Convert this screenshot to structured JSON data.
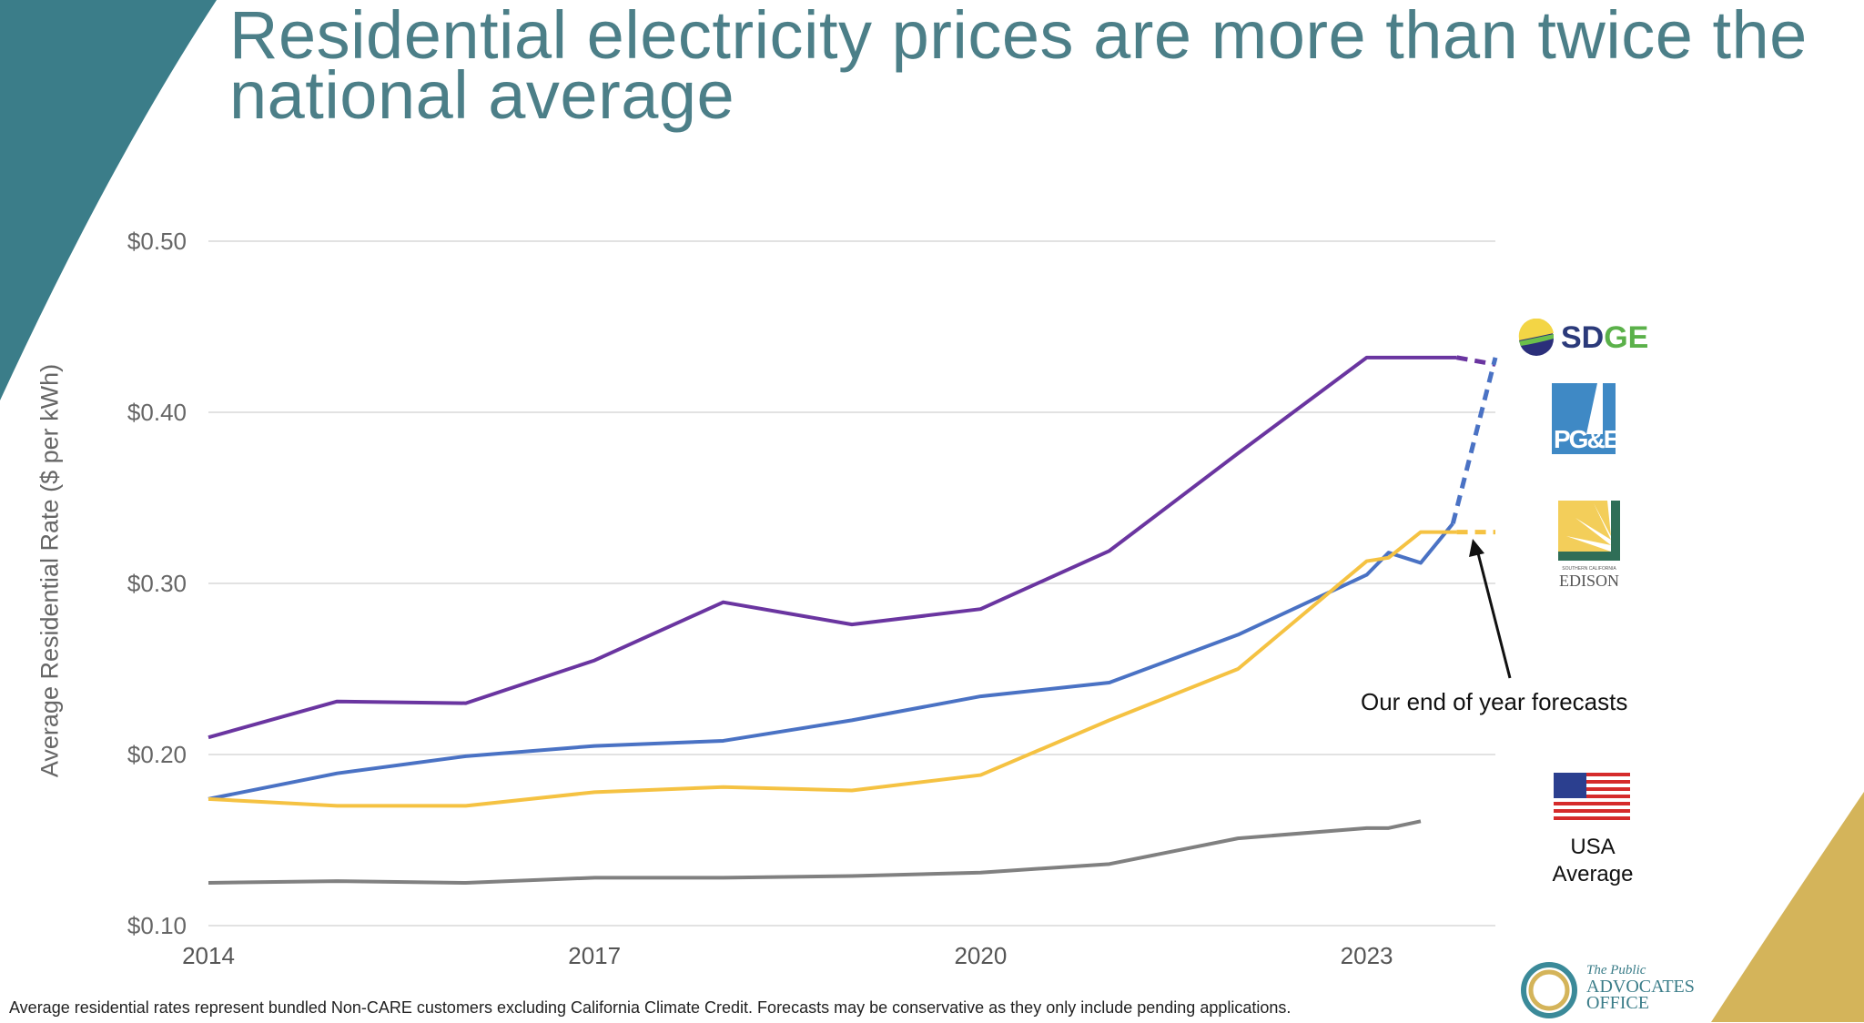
{
  "title": "Residential electricity prices are more than twice the national average",
  "footnote": "Average residential rates represent bundled Non-CARE customers excluding California Climate Credit. Forecasts may be conservative as they only include pending applications.",
  "annotation": "Our end of year forecasts",
  "logos": {
    "sdge": "SDGE",
    "pge": "PG&E",
    "sce_small": "SOUTHERN CALIFORNIA",
    "sce": "EDISON",
    "usa_line1": "USA",
    "usa_line2": "Average",
    "pao_line1": "The Public",
    "pao_line2": "ADVOCATES",
    "pao_line3": "OFFICE"
  },
  "colors": {
    "title": "#4c7f88",
    "sdge": "#6a35a0",
    "pge": "#4a72c4",
    "sce": "#f5c242",
    "usa": "#808080",
    "grid": "#d9d9d9"
  },
  "chart_data": {
    "type": "line",
    "ylabel": "Average Residential Rate ($ per kWh)",
    "xlabel": "",
    "xlim": [
      2014,
      2024
    ],
    "ylim": [
      0.1,
      0.5
    ],
    "xticks": [
      2014,
      2017,
      2020,
      2023
    ],
    "xtick_labels": [
      "2014",
      "2017",
      "2020",
      "2023"
    ],
    "yticks": [
      0.1,
      0.2,
      0.3,
      0.4,
      0.5
    ],
    "ytick_labels": [
      "$0.10",
      "$0.20",
      "$0.30",
      "$0.40",
      "$0.50"
    ],
    "grid": true,
    "legend": "logos at right",
    "series": [
      {
        "key": "sdge",
        "color": "#6a35a0",
        "x": [
          2014,
          2015,
          2016,
          2017,
          2018,
          2019,
          2020,
          2021,
          2022,
          2023,
          2023.7
        ],
        "y": [
          0.21,
          0.231,
          0.23,
          0.255,
          0.289,
          0.276,
          0.285,
          0.319,
          0.376,
          0.432,
          0.432
        ],
        "forecast_x": [
          2023.7,
          2024
        ],
        "forecast_y": [
          0.432,
          0.428
        ]
      },
      {
        "key": "pge",
        "color": "#4a72c4",
        "x": [
          2014,
          2015,
          2016,
          2017,
          2018,
          2019,
          2020,
          2021,
          2022,
          2023,
          2023.17,
          2023.42,
          2023.67
        ],
        "y": [
          0.174,
          0.189,
          0.199,
          0.205,
          0.208,
          0.22,
          0.234,
          0.242,
          0.27,
          0.305,
          0.318,
          0.312,
          0.335
        ],
        "forecast_x": [
          2023.67,
          2024
        ],
        "forecast_y": [
          0.335,
          0.432
        ]
      },
      {
        "key": "sce",
        "color": "#f5c242",
        "x": [
          2014,
          2015,
          2016,
          2017,
          2018,
          2019,
          2020,
          2021,
          2022,
          2023,
          2023.17,
          2023.42,
          2023.7
        ],
        "y": [
          0.174,
          0.17,
          0.17,
          0.178,
          0.181,
          0.179,
          0.188,
          0.22,
          0.25,
          0.313,
          0.315,
          0.33,
          0.33
        ],
        "forecast_x": [
          2023.7,
          2024
        ],
        "forecast_y": [
          0.33,
          0.33
        ]
      },
      {
        "key": "usa",
        "color": "#808080",
        "x": [
          2014,
          2015,
          2016,
          2017,
          2018,
          2019,
          2020,
          2021,
          2022,
          2023,
          2023.17,
          2023.42
        ],
        "y": [
          0.125,
          0.126,
          0.125,
          0.128,
          0.128,
          0.129,
          0.131,
          0.136,
          0.151,
          0.157,
          0.157,
          0.161
        ],
        "forecast_x": [],
        "forecast_y": []
      }
    ]
  }
}
